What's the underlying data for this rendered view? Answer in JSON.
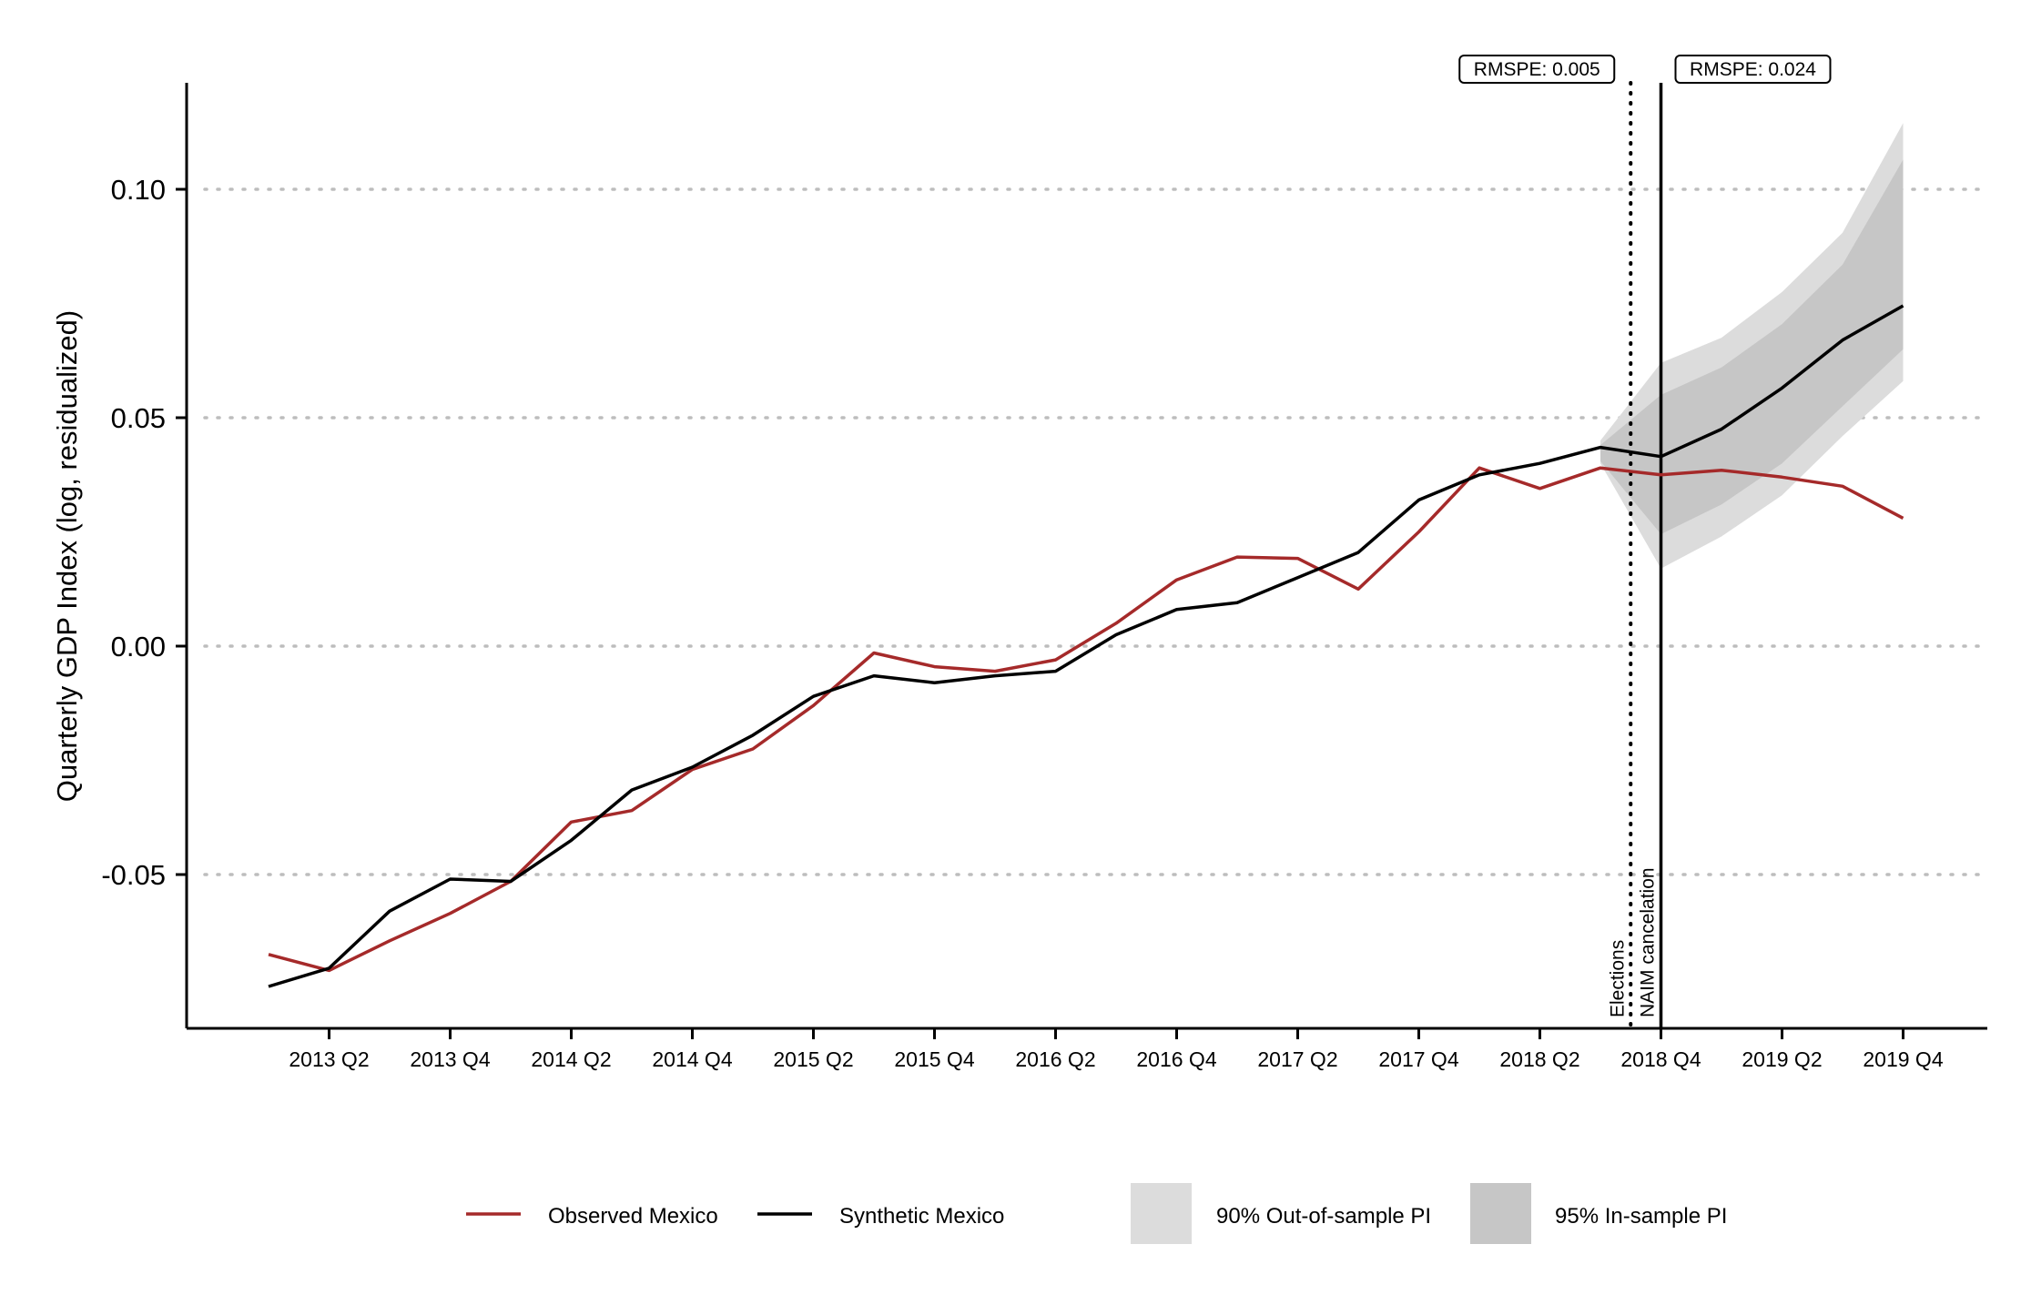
{
  "chart_data": {
    "type": "line",
    "title": "",
    "xlabel": "",
    "ylabel": "Quarterly GDP Index (log, residualized)",
    "x": [
      "2013 Q1",
      "2013 Q2",
      "2013 Q3",
      "2013 Q4",
      "2014 Q1",
      "2014 Q2",
      "2014 Q3",
      "2014 Q4",
      "2015 Q1",
      "2015 Q2",
      "2015 Q3",
      "2015 Q4",
      "2016 Q1",
      "2016 Q2",
      "2016 Q3",
      "2016 Q4",
      "2017 Q1",
      "2017 Q2",
      "2017 Q3",
      "2017 Q4",
      "2018 Q1",
      "2018 Q2",
      "2018 Q3",
      "2018 Q4",
      "2019 Q1",
      "2019 Q2",
      "2019 Q3",
      "2019 Q4"
    ],
    "x_tick_labels": [
      "2013 Q2",
      "2013 Q4",
      "2014 Q2",
      "2014 Q4",
      "2015 Q2",
      "2015 Q4",
      "2016 Q2",
      "2016 Q4",
      "2017 Q2",
      "2017 Q4",
      "2018 Q2",
      "2018 Q4",
      "2019 Q2",
      "2019 Q4"
    ],
    "y_ticks": [
      -0.05,
      0.0,
      0.05,
      0.1
    ],
    "y_tick_labels": [
      "-0.05",
      "0.00",
      "0.05",
      "0.10"
    ],
    "ylim": [
      -0.083,
      0.123
    ],
    "grid": "horizontal-dotted",
    "legend_position": "bottom",
    "series": [
      {
        "name": "Observed Mexico",
        "color": "#a52a2a",
        "values": [
          -0.0675,
          -0.071,
          -0.0645,
          -0.0585,
          -0.0515,
          -0.0385,
          -0.036,
          -0.027,
          -0.0225,
          -0.013,
          -0.0015,
          -0.0045,
          -0.0055,
          -0.003,
          0.005,
          0.0145,
          0.0195,
          0.0192,
          0.0125,
          0.025,
          0.039,
          0.0345,
          0.039,
          0.0375,
          0.0385,
          0.037,
          0.035,
          0.028
        ]
      },
      {
        "name": "Synthetic Mexico",
        "color": "#000000",
        "values": [
          -0.0745,
          -0.0705,
          -0.058,
          -0.051,
          -0.0515,
          -0.0425,
          -0.0315,
          -0.0265,
          -0.0195,
          -0.011,
          -0.0065,
          -0.008,
          -0.0065,
          -0.0055,
          0.0025,
          0.008,
          0.0095,
          0.015,
          0.0205,
          0.032,
          0.0375,
          0.04,
          0.0435,
          0.0415,
          0.0475,
          0.0565,
          0.067,
          0.0745
        ]
      }
    ],
    "bands": [
      {
        "name": "90% Out-of-sample PI",
        "color": "#dcdcdc",
        "x_start_index": 22,
        "lower": [
          0.04,
          0.017,
          0.024,
          0.033,
          0.046,
          0.058
        ],
        "upper": [
          0.045,
          0.062,
          0.0675,
          0.0775,
          0.0905,
          0.1145
        ]
      },
      {
        "name": "95% In-sample PI",
        "color": "#c6c6c6",
        "x_start_index": 22,
        "lower": [
          0.0405,
          0.0245,
          0.031,
          0.04,
          0.0525,
          0.065
        ],
        "upper": [
          0.044,
          0.055,
          0.061,
          0.0705,
          0.0835,
          0.1065
        ]
      }
    ],
    "vlines": [
      {
        "label": "Elections",
        "x_position": 22.5,
        "style": "dotted",
        "box_label": "RMSPE: 0.005"
      },
      {
        "label": "NAIM cancelation",
        "x_position": 23,
        "style": "solid",
        "box_label": "RMSPE: 0.024"
      }
    ],
    "legend": {
      "observed_label": "Observed Mexico",
      "synthetic_label": "Synthetic Mexico",
      "out_sample_label": "90% Out-of-sample PI",
      "in_sample_label": "95% In-sample PI"
    }
  }
}
